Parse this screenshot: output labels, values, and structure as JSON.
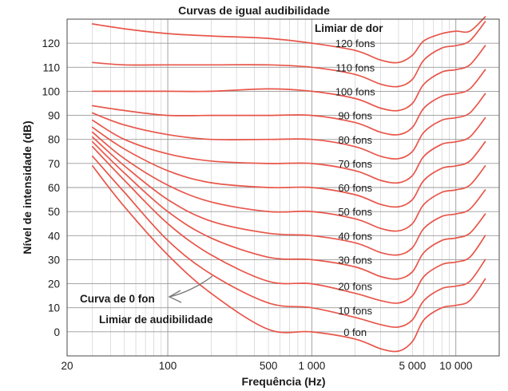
{
  "chart_data": {
    "type": "line",
    "title": "Curvas de igual audibilidade",
    "xlabel": "Frequência (Hz)",
    "ylabel": "Nível de intensidade (dB)",
    "x_scale": "log",
    "xlim": [
      20,
      20000
    ],
    "ylim": [
      -10,
      130
    ],
    "grid": true,
    "x_ticks": [
      {
        "value": 20,
        "label": "20"
      },
      {
        "value": 100,
        "label": "100"
      },
      {
        "value": 500,
        "label": "500"
      },
      {
        "value": 1000,
        "label": "1 000"
      },
      {
        "value": 5000,
        "label": "5 000"
      },
      {
        "value": 10000,
        "label": "10 000"
      }
    ],
    "y_ticks": [
      0,
      10,
      20,
      30,
      40,
      50,
      60,
      70,
      80,
      90,
      100,
      110,
      120
    ],
    "line_color": "#e8564a",
    "series": [
      {
        "name": "0 fon",
        "x": [
          30,
          50,
          100,
          200,
          500,
          1000,
          2000,
          3000,
          4000,
          5000,
          6000,
          8000,
          10000,
          12500,
          16000
        ],
        "y": [
          69,
          52,
          32,
          16,
          1,
          0,
          -3,
          -7,
          -8,
          -4,
          5,
          10,
          11,
          13,
          22
        ]
      },
      {
        "name": "10 fons",
        "x": [
          30,
          50,
          100,
          200,
          500,
          1000,
          2000,
          3000,
          4000,
          5000,
          6000,
          8000,
          10000,
          12500,
          16000
        ],
        "y": [
          73,
          58,
          38,
          24,
          12,
          10,
          6,
          3,
          2,
          5,
          13,
          18,
          19,
          21,
          30
        ]
      },
      {
        "name": "20 fons",
        "x": [
          30,
          50,
          100,
          200,
          500,
          1000,
          2000,
          3000,
          4000,
          5000,
          6000,
          8000,
          10000,
          12500,
          16000
        ],
        "y": [
          77,
          63,
          45,
          32,
          21,
          20,
          16,
          13,
          12,
          15,
          23,
          28,
          29,
          31,
          40
        ]
      },
      {
        "name": "30 fons",
        "x": [
          30,
          50,
          100,
          200,
          500,
          1000,
          2000,
          3000,
          4000,
          5000,
          6000,
          8000,
          10000,
          12500,
          16000
        ],
        "y": [
          79,
          66,
          50,
          39,
          31,
          30,
          27,
          23,
          22,
          25,
          33,
          38,
          39,
          41,
          49
        ]
      },
      {
        "name": "40 fons",
        "x": [
          30,
          50,
          100,
          200,
          500,
          1000,
          2000,
          3000,
          4000,
          5000,
          6000,
          8000,
          10000,
          12500,
          16000
        ],
        "y": [
          81,
          69,
          55,
          46,
          41,
          40,
          37,
          33,
          32,
          35,
          43,
          48,
          49,
          51,
          59
        ]
      },
      {
        "name": "50 fons",
        "x": [
          30,
          50,
          100,
          200,
          500,
          1000,
          2000,
          3000,
          4000,
          5000,
          6000,
          8000,
          10000,
          12500,
          16000
        ],
        "y": [
          83,
          72,
          61,
          54,
          50,
          50,
          47,
          43,
          42,
          45,
          53,
          58,
          59,
          61,
          69
        ]
      },
      {
        "name": "60 fons",
        "x": [
          30,
          50,
          100,
          200,
          500,
          1000,
          2000,
          3000,
          4000,
          5000,
          6000,
          8000,
          10000,
          12500,
          16000
        ],
        "y": [
          85,
          76,
          67,
          62,
          60,
          60,
          57,
          53,
          52,
          55,
          63,
          68,
          69,
          71,
          79
        ]
      },
      {
        "name": "70 fons",
        "x": [
          30,
          50,
          100,
          200,
          500,
          1000,
          2000,
          3000,
          4000,
          5000,
          6000,
          8000,
          10000,
          12500,
          16000
        ],
        "y": [
          88,
          80,
          74,
          71,
          70,
          70,
          67,
          63,
          62,
          65,
          73,
          78,
          79,
          81,
          89
        ]
      },
      {
        "name": "80 fons",
        "x": [
          30,
          50,
          100,
          200,
          500,
          1000,
          2000,
          3000,
          4000,
          5000,
          6000,
          8000,
          10000,
          12500,
          16000
        ],
        "y": [
          91,
          86,
          82,
          80,
          80,
          80,
          77,
          73,
          72,
          75,
          83,
          88,
          89,
          91,
          99
        ]
      },
      {
        "name": "90 fons",
        "x": [
          30,
          50,
          100,
          200,
          500,
          1000,
          2000,
          3000,
          4000,
          5000,
          6000,
          8000,
          10000,
          12500,
          16000
        ],
        "y": [
          94,
          92,
          90,
          90,
          90,
          90,
          87,
          83,
          82,
          85,
          93,
          98,
          99,
          101,
          109
        ]
      },
      {
        "name": "100 fons",
        "x": [
          30,
          50,
          100,
          200,
          500,
          1000,
          2000,
          3000,
          4000,
          5000,
          6000,
          8000,
          10000,
          12500,
          16000
        ],
        "y": [
          100,
          100,
          100,
          100,
          101,
          100,
          97,
          93,
          92,
          95,
          103,
          108,
          109,
          111,
          119
        ]
      },
      {
        "name": "110 fons",
        "x": [
          30,
          50,
          100,
          200,
          500,
          1000,
          2000,
          3000,
          4000,
          5000,
          6000,
          8000,
          10000,
          12500,
          16000
        ],
        "y": [
          112,
          111,
          111,
          111,
          111,
          110,
          107,
          103,
          102,
          105,
          113,
          118,
          119,
          121,
          129
        ]
      },
      {
        "name": "120 fons",
        "x": [
          30,
          50,
          100,
          200,
          500,
          1000,
          2000,
          3000,
          4000,
          5000,
          6000,
          8000,
          10000,
          12500,
          16000
        ],
        "y": [
          128,
          126,
          124,
          123,
          122,
          120,
          117,
          113,
          112,
          115,
          121,
          124,
          125,
          125,
          131
        ]
      }
    ],
    "annotations": {
      "pain_threshold": "Limiar de dor",
      "zero_curve": "Curva de 0 fon",
      "hearing_threshold": "Limiar de audibilidade"
    }
  }
}
